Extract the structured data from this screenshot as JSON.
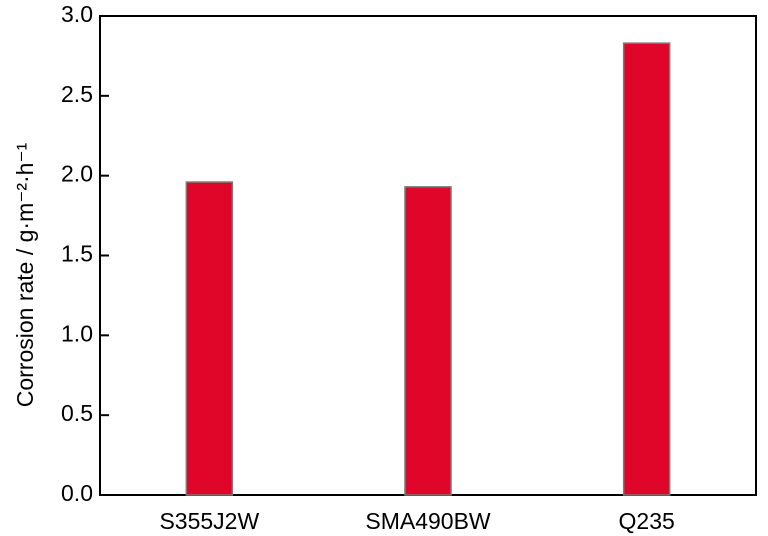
{
  "chart_data": {
    "type": "bar",
    "categories": [
      "S355J2W",
      "SMA490BW",
      "Q235"
    ],
    "values": [
      1.96,
      1.93,
      2.83
    ],
    "ylabel": "Corrosion rate / g·m⁻²·h⁻¹",
    "xlabel": "",
    "ylim": [
      0.0,
      3.0
    ],
    "yticks": [
      "0.0",
      "0.5",
      "1.0",
      "1.5",
      "2.0",
      "2.5",
      "3.0"
    ],
    "bar_color": "#e0062a",
    "grid": false
  }
}
